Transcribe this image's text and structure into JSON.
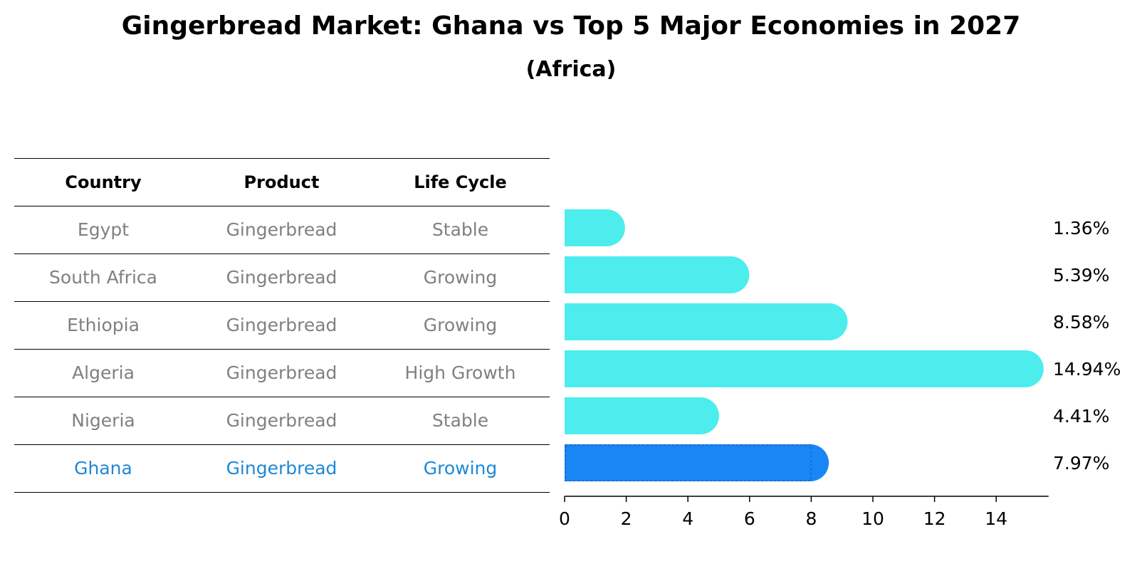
{
  "title": "Gingerbread Market: Ghana vs Top 5 Major Economies in 2027",
  "subtitle": "(Africa)",
  "table": {
    "headers": [
      "Country",
      "Product",
      "Life Cycle"
    ],
    "rows": [
      [
        "Egypt",
        "Gingerbread",
        "Stable"
      ],
      [
        "South Africa",
        "Gingerbread",
        "Growing"
      ],
      [
        "Ethiopia",
        "Gingerbread",
        "Growing"
      ],
      [
        "Algeria",
        "Gingerbread",
        "High Growth"
      ],
      [
        "Nigeria",
        "Gingerbread",
        "Stable"
      ],
      [
        "Ghana",
        "Gingerbread",
        "Growing"
      ]
    ],
    "highlight_row": 5
  },
  "colors": {
    "bar": "#4deded",
    "highlight_bar": "#1a86f5",
    "highlight_text": "#1e88d6",
    "muted_text": "#808080"
  },
  "chart_data": {
    "type": "bar",
    "orientation": "horizontal",
    "categories": [
      "Egypt",
      "South Africa",
      "Ethiopia",
      "Algeria",
      "Nigeria",
      "Ghana"
    ],
    "values": [
      1.36,
      5.39,
      8.58,
      14.94,
      4.41,
      7.97
    ],
    "value_labels": [
      "1.36%",
      "5.39%",
      "8.58%",
      "14.94%",
      "4.41%",
      "7.97%"
    ],
    "highlight_category": "Ghana",
    "xlim": [
      0,
      15.7
    ],
    "xticks": [
      0,
      2,
      4,
      6,
      8,
      10,
      12,
      14
    ],
    "xtick_labels": [
      "0",
      "2",
      "4",
      "6",
      "8",
      "10",
      "12",
      "14"
    ],
    "grid": false
  }
}
